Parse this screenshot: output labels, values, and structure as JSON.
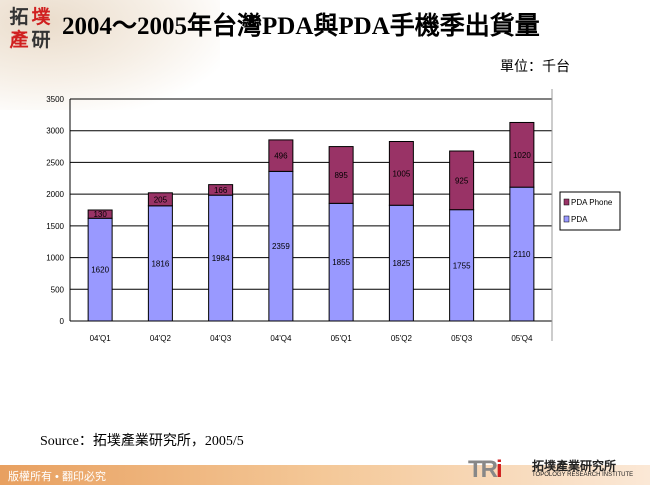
{
  "header": {
    "logo_text": "拓墣產研",
    "title": "2004～2005年台灣PDA與PDA手機季出貨量",
    "unit": "單位：千台"
  },
  "footer": {
    "source": "Source：拓墣產業研究所，2005/5",
    "copyright": "版權所有 • 翻印必究",
    "brand_mark": "TRi",
    "brand_cn": "拓墣產業研究所",
    "brand_en": "TOPOLOGY RESEARCH INSTITUTE"
  },
  "chart_data": {
    "type": "bar",
    "stacked": true,
    "categories": [
      "04'Q1",
      "04'Q2",
      "04'Q3",
      "04'Q4",
      "05'Q1",
      "05'Q2",
      "05'Q3",
      "05'Q4"
    ],
    "series": [
      {
        "name": "PDA",
        "color": "#9999ff",
        "values": [
          1620,
          1816,
          1984,
          2359,
          1855,
          1825,
          1755,
          2110
        ]
      },
      {
        "name": "PDA Phone",
        "color": "#993366",
        "values": [
          130,
          205,
          166,
          496,
          895,
          1005,
          925,
          1020
        ]
      }
    ],
    "ylim": [
      0,
      3500
    ],
    "yticks": [
      0,
      500,
      1000,
      1500,
      2000,
      2500,
      3000,
      3500
    ],
    "grid": true,
    "legend": "right"
  }
}
